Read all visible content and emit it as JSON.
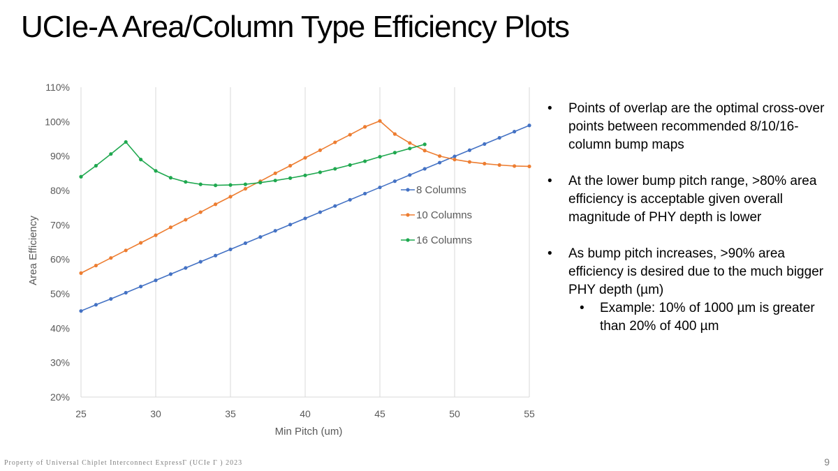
{
  "slide": {
    "title": "UCIe-A Area/Column Type Efficiency Plots",
    "footer": "Property of Universal Chiplet Interconnect ExpressΓ (UCIe Γ ) 2023",
    "page_number": "9"
  },
  "bullets": [
    {
      "text": "Points of overlap are the optimal cross-over points between recommended 8/10/16-column bump maps",
      "sub": []
    },
    {
      "text": "At the lower bump pitch range, >80% area efficiency is acceptable given overall magnitude of PHY depth is lower",
      "sub": []
    },
    {
      "text": "As bump pitch increases, >90% area efficiency is desired due to the much bigger PHY depth (µm)",
      "sub": [
        "Example: 10% of 1000 µm is greater than 20% of 400 µm"
      ]
    }
  ],
  "bullet_glyph": "•",
  "colors": {
    "8 Columns": "#4472C4",
    "10 Columns": "#ED7D31",
    "16 Columns": "#1FA84F"
  },
  "chart_data": {
    "type": "line",
    "xlabel": "Min Pitch (um)",
    "ylabel": "Area Efficiency",
    "xlim": [
      25,
      55
    ],
    "ylim": [
      20,
      110
    ],
    "x_ticks": [
      25,
      30,
      35,
      40,
      45,
      50,
      55
    ],
    "x_tick_labels": [
      "25",
      "30",
      "35",
      "40",
      "45",
      "50",
      "55"
    ],
    "y_ticks": [
      20,
      30,
      40,
      50,
      60,
      70,
      80,
      90,
      100,
      110
    ],
    "y_tick_labels": [
      "20%",
      "30%",
      "40%",
      "50%",
      "60%",
      "70%",
      "80%",
      "90%",
      "100%",
      "110%"
    ],
    "grid": "vertical",
    "legend": "inside-right",
    "series": [
      {
        "name": "8 Columns",
        "x": [
          25,
          26,
          27,
          28,
          29,
          30,
          31,
          32,
          33,
          34,
          35,
          36,
          37,
          38,
          39,
          40,
          41,
          42,
          43,
          44,
          45,
          46,
          47,
          48,
          49,
          50,
          51,
          52,
          53,
          54,
          55
        ],
        "values": [
          45,
          46.8,
          48.5,
          50.3,
          52.1,
          53.9,
          55.7,
          57.5,
          59.3,
          61.1,
          62.9,
          64.7,
          66.5,
          68.3,
          70.1,
          71.9,
          73.7,
          75.5,
          77.3,
          79.1,
          80.9,
          82.7,
          84.5,
          86.3,
          88.1,
          89.9,
          91.7,
          93.5,
          95.3,
          97.1,
          98.9
        ]
      },
      {
        "name": "10 Columns",
        "x": [
          25,
          26,
          27,
          28,
          29,
          30,
          31,
          32,
          33,
          34,
          35,
          36,
          37,
          38,
          39,
          40,
          41,
          42,
          43,
          44,
          45,
          46,
          47,
          48,
          49,
          50,
          51,
          52,
          53,
          54,
          55
        ],
        "values": [
          56,
          58.2,
          60.4,
          62.6,
          64.8,
          67,
          69.3,
          71.5,
          73.7,
          76,
          78.2,
          80.5,
          82.7,
          85,
          87.2,
          89.5,
          91.7,
          94,
          96.2,
          98.5,
          100.2,
          96.4,
          93.8,
          91.6,
          90,
          89,
          88.3,
          87.8,
          87.4,
          87.1,
          87
        ]
      },
      {
        "name": "16 Columns",
        "x": [
          25,
          26,
          27,
          28,
          29,
          30,
          31,
          32,
          33,
          34,
          35,
          36,
          37,
          38,
          39,
          40,
          41,
          42,
          43,
          44,
          45,
          46,
          47,
          48
        ],
        "values": [
          84,
          87.2,
          90.6,
          94.1,
          89,
          85.7,
          83.7,
          82.5,
          81.8,
          81.5,
          81.6,
          81.8,
          82.3,
          82.9,
          83.6,
          84.4,
          85.3,
          86.3,
          87.4,
          88.5,
          89.8,
          91,
          92.2,
          93.4
        ]
      }
    ]
  }
}
